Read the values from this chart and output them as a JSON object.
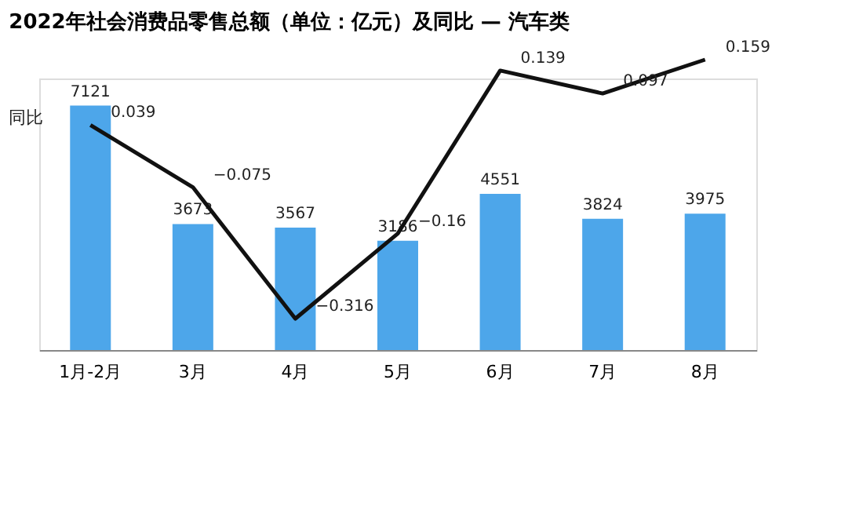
{
  "chart_data": {
    "type": "bar",
    "title": "2022年社会消费品零售总额（单位：亿元）及同比 — 汽车类",
    "categories": [
      "1月-2月",
      "3月",
      "4月",
      "5月",
      "6月",
      "7月",
      "8月"
    ],
    "tick_labels": "x",
    "data_labels": true,
    "series": [
      {
        "color": "#4da6ea",
        "values": [
          7121,
          3673,
          3567,
          3186,
          4551,
          3824,
          3975
        ]
      },
      {
        "type": "line",
        "name": "同比",
        "color": "#111111",
        "axis": "y2",
        "values": [
          0.039,
          -0.075,
          -0.316,
          -0.16,
          0.139,
          0.097,
          0.159
        ]
      }
    ]
  }
}
